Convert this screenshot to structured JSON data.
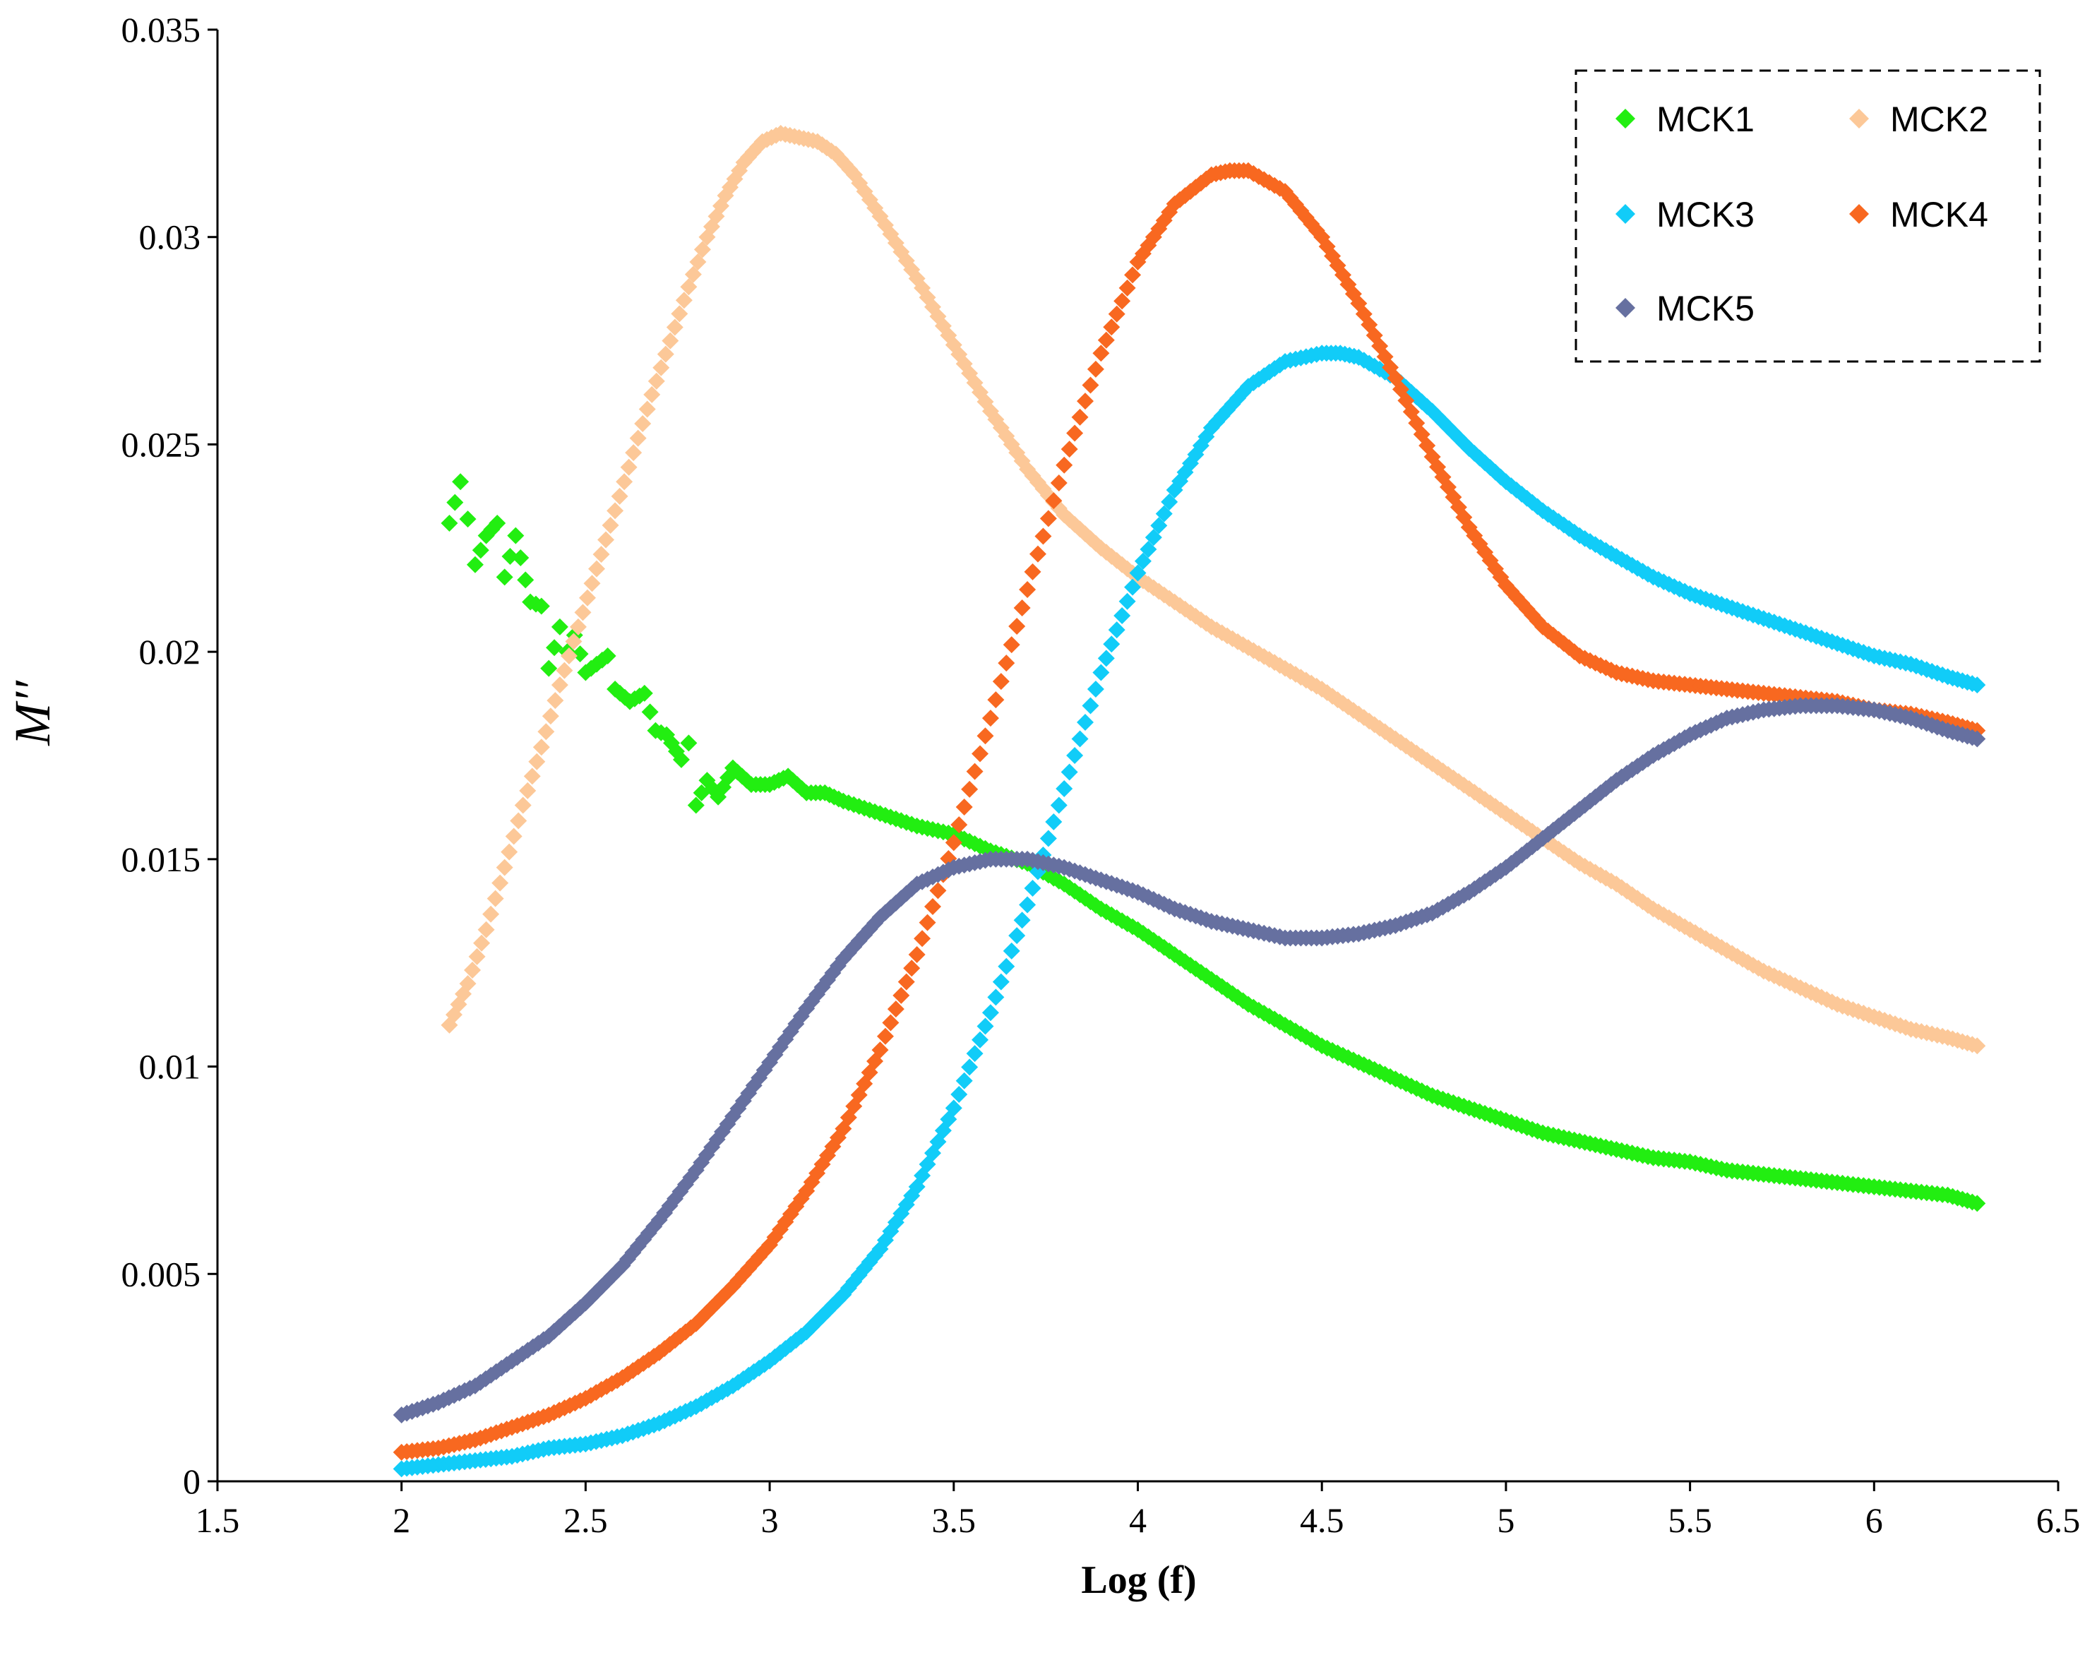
{
  "chart_data": {
    "type": "scatter",
    "title": "",
    "xlabel": "Log (f)",
    "ylabel": "M′′",
    "xlim": [
      1.5,
      6.5
    ],
    "ylim": [
      0,
      0.035
    ],
    "xticks": [
      1.5,
      2,
      2.5,
      3,
      3.5,
      4,
      4.5,
      5,
      5.5,
      6,
      6.5
    ],
    "xtick_labels": [
      "1.5",
      "2",
      "2.5",
      "3",
      "3.5",
      "4",
      "4.5",
      "5",
      "5.5",
      "6",
      "6.5"
    ],
    "yticks": [
      0,
      0.005,
      0.01,
      0.015,
      0.02,
      0.025,
      0.03,
      0.035
    ],
    "ytick_labels": [
      "0",
      "0.005",
      "0.01",
      "0.015",
      "0.02",
      "0.025",
      "0.03",
      "0.035"
    ],
    "grid": false,
    "legend_position": "top-right",
    "marker": "diamond",
    "series": [
      {
        "name": "MCK1",
        "color": "#22ee11",
        "points": [
          [
            2.13,
            0.0231
          ],
          [
            2.16,
            0.0241
          ],
          [
            2.18,
            0.0232
          ],
          [
            2.2,
            0.0221
          ],
          [
            2.23,
            0.0228
          ],
          [
            2.26,
            0.0231
          ],
          [
            2.28,
            0.0218
          ],
          [
            2.31,
            0.0228
          ],
          [
            2.35,
            0.0212
          ],
          [
            2.38,
            0.0211
          ],
          [
            2.4,
            0.0196
          ],
          [
            2.43,
            0.0206
          ],
          [
            2.45,
            0.02
          ],
          [
            2.47,
            0.0204
          ],
          [
            2.5,
            0.0195
          ],
          [
            2.53,
            0.0197
          ],
          [
            2.56,
            0.0199
          ],
          [
            2.58,
            0.0191
          ],
          [
            2.62,
            0.0188
          ],
          [
            2.66,
            0.019
          ],
          [
            2.69,
            0.0181
          ],
          [
            2.72,
            0.018
          ],
          [
            2.76,
            0.0174
          ],
          [
            2.78,
            0.0178
          ],
          [
            2.8,
            0.0163
          ],
          [
            2.83,
            0.0169
          ],
          [
            2.86,
            0.0165
          ],
          [
            2.9,
            0.0172
          ],
          [
            2.95,
            0.0168
          ],
          [
            3.0,
            0.0168
          ],
          [
            3.05,
            0.017
          ],
          [
            3.1,
            0.0166
          ],
          [
            3.15,
            0.0166
          ],
          [
            3.2,
            0.0164
          ],
          [
            3.3,
            0.0161
          ],
          [
            3.4,
            0.0158
          ],
          [
            3.5,
            0.0156
          ],
          [
            3.6,
            0.0152
          ],
          [
            3.7,
            0.0149
          ],
          [
            3.8,
            0.0144
          ],
          [
            3.9,
            0.0138
          ],
          [
            4.0,
            0.0133
          ],
          [
            4.1,
            0.0127
          ],
          [
            4.2,
            0.0121
          ],
          [
            4.3,
            0.0115
          ],
          [
            4.4,
            0.011
          ],
          [
            4.5,
            0.0105
          ],
          [
            4.6,
            0.0101
          ],
          [
            4.7,
            0.0097
          ],
          [
            4.8,
            0.0093
          ],
          [
            4.9,
            0.009
          ],
          [
            5.0,
            0.0087
          ],
          [
            5.1,
            0.0084
          ],
          [
            5.2,
            0.0082
          ],
          [
            5.3,
            0.008
          ],
          [
            5.4,
            0.0078
          ],
          [
            5.5,
            0.0077
          ],
          [
            5.6,
            0.0075
          ],
          [
            5.7,
            0.0074
          ],
          [
            5.8,
            0.0073
          ],
          [
            5.9,
            0.0072
          ],
          [
            6.0,
            0.0071
          ],
          [
            6.1,
            0.007
          ],
          [
            6.2,
            0.0069
          ],
          [
            6.28,
            0.0067
          ]
        ]
      },
      {
        "name": "MCK2",
        "color": "#fcc898",
        "points": [
          [
            2.13,
            0.011
          ],
          [
            2.18,
            0.012
          ],
          [
            2.23,
            0.0133
          ],
          [
            2.28,
            0.0148
          ],
          [
            2.33,
            0.0163
          ],
          [
            2.38,
            0.0177
          ],
          [
            2.43,
            0.0192
          ],
          [
            2.48,
            0.0206
          ],
          [
            2.53,
            0.022
          ],
          [
            2.58,
            0.0234
          ],
          [
            2.63,
            0.0248
          ],
          [
            2.68,
            0.0262
          ],
          [
            2.73,
            0.0275
          ],
          [
            2.78,
            0.0288
          ],
          [
            2.83,
            0.03
          ],
          [
            2.88,
            0.031
          ],
          [
            2.93,
            0.0318
          ],
          [
            2.98,
            0.0323
          ],
          [
            3.03,
            0.0325
          ],
          [
            3.08,
            0.0324
          ],
          [
            3.13,
            0.0323
          ],
          [
            3.18,
            0.032
          ],
          [
            3.23,
            0.0315
          ],
          [
            3.3,
            0.0305
          ],
          [
            3.4,
            0.029
          ],
          [
            3.5,
            0.0274
          ],
          [
            3.6,
            0.0258
          ],
          [
            3.7,
            0.0244
          ],
          [
            3.8,
            0.0233
          ],
          [
            3.9,
            0.0225
          ],
          [
            4.0,
            0.0218
          ],
          [
            4.1,
            0.0212
          ],
          [
            4.2,
            0.0206
          ],
          [
            4.3,
            0.0201
          ],
          [
            4.4,
            0.0196
          ],
          [
            4.5,
            0.0191
          ],
          [
            4.6,
            0.0185
          ],
          [
            4.7,
            0.0179
          ],
          [
            4.8,
            0.0173
          ],
          [
            4.9,
            0.0167
          ],
          [
            5.0,
            0.0161
          ],
          [
            5.1,
            0.0155
          ],
          [
            5.2,
            0.0149
          ],
          [
            5.3,
            0.0144
          ],
          [
            5.4,
            0.0138
          ],
          [
            5.5,
            0.0133
          ],
          [
            5.6,
            0.0128
          ],
          [
            5.7,
            0.0123
          ],
          [
            5.8,
            0.0119
          ],
          [
            5.9,
            0.0115
          ],
          [
            6.0,
            0.0112
          ],
          [
            6.1,
            0.0109
          ],
          [
            6.2,
            0.0107
          ],
          [
            6.28,
            0.0105
          ]
        ]
      },
      {
        "name": "MCK3",
        "color": "#11ccf8",
        "points": [
          [
            2.0,
            0.0003
          ],
          [
            2.1,
            0.0004
          ],
          [
            2.2,
            0.0005
          ],
          [
            2.3,
            0.0006
          ],
          [
            2.4,
            0.0008
          ],
          [
            2.5,
            0.0009
          ],
          [
            2.6,
            0.0011
          ],
          [
            2.7,
            0.0014
          ],
          [
            2.8,
            0.0018
          ],
          [
            2.9,
            0.0023
          ],
          [
            3.0,
            0.0029
          ],
          [
            3.1,
            0.0036
          ],
          [
            3.2,
            0.0045
          ],
          [
            3.3,
            0.0056
          ],
          [
            3.4,
            0.0071
          ],
          [
            3.5,
            0.009
          ],
          [
            3.6,
            0.0113
          ],
          [
            3.7,
            0.0139
          ],
          [
            3.8,
            0.0167
          ],
          [
            3.9,
            0.0195
          ],
          [
            4.0,
            0.0219
          ],
          [
            4.1,
            0.0239
          ],
          [
            4.2,
            0.0254
          ],
          [
            4.3,
            0.0264
          ],
          [
            4.4,
            0.027
          ],
          [
            4.5,
            0.0272
          ],
          [
            4.55,
            0.0272
          ],
          [
            4.6,
            0.0271
          ],
          [
            4.7,
            0.0266
          ],
          [
            4.8,
            0.0258
          ],
          [
            4.9,
            0.0249
          ],
          [
            5.0,
            0.0241
          ],
          [
            5.1,
            0.0234
          ],
          [
            5.2,
            0.0228
          ],
          [
            5.3,
            0.0223
          ],
          [
            5.4,
            0.0218
          ],
          [
            5.5,
            0.0214
          ],
          [
            5.6,
            0.0211
          ],
          [
            5.7,
            0.0208
          ],
          [
            5.8,
            0.0205
          ],
          [
            5.9,
            0.0202
          ],
          [
            6.0,
            0.0199
          ],
          [
            6.1,
            0.0197
          ],
          [
            6.2,
            0.0194
          ],
          [
            6.28,
            0.0192
          ]
        ]
      },
      {
        "name": "MCK4",
        "color": "#f86820",
        "points": [
          [
            2.0,
            0.0007
          ],
          [
            2.1,
            0.0008
          ],
          [
            2.2,
            0.001
          ],
          [
            2.3,
            0.0013
          ],
          [
            2.4,
            0.0016
          ],
          [
            2.5,
            0.002
          ],
          [
            2.6,
            0.0025
          ],
          [
            2.7,
            0.0031
          ],
          [
            2.8,
            0.0038
          ],
          [
            2.9,
            0.0047
          ],
          [
            3.0,
            0.0057
          ],
          [
            3.1,
            0.007
          ],
          [
            3.2,
            0.0085
          ],
          [
            3.3,
            0.0104
          ],
          [
            3.4,
            0.0127
          ],
          [
            3.5,
            0.0154
          ],
          [
            3.6,
            0.0184
          ],
          [
            3.7,
            0.0215
          ],
          [
            3.8,
            0.0245
          ],
          [
            3.9,
            0.0272
          ],
          [
            4.0,
            0.0294
          ],
          [
            4.1,
            0.0308
          ],
          [
            4.2,
            0.0315
          ],
          [
            4.25,
            0.0316
          ],
          [
            4.3,
            0.0316
          ],
          [
            4.4,
            0.0311
          ],
          [
            4.5,
            0.03
          ],
          [
            4.6,
            0.0284
          ],
          [
            4.7,
            0.0266
          ],
          [
            4.8,
            0.0247
          ],
          [
            4.9,
            0.023
          ],
          [
            5.0,
            0.0216
          ],
          [
            5.1,
            0.0206
          ],
          [
            5.2,
            0.0199
          ],
          [
            5.3,
            0.0195
          ],
          [
            5.4,
            0.0193
          ],
          [
            5.5,
            0.0192
          ],
          [
            5.6,
            0.0191
          ],
          [
            5.7,
            0.019
          ],
          [
            5.8,
            0.0189
          ],
          [
            5.9,
            0.0188
          ],
          [
            6.0,
            0.0186
          ],
          [
            6.1,
            0.0185
          ],
          [
            6.2,
            0.0183
          ],
          [
            6.28,
            0.0181
          ]
        ]
      },
      {
        "name": "MCK5",
        "color": "#6670a0",
        "points": [
          [
            2.0,
            0.0016
          ],
          [
            2.1,
            0.0019
          ],
          [
            2.2,
            0.0023
          ],
          [
            2.3,
            0.0029
          ],
          [
            2.4,
            0.0035
          ],
          [
            2.5,
            0.0043
          ],
          [
            2.6,
            0.0052
          ],
          [
            2.7,
            0.0063
          ],
          [
            2.8,
            0.0075
          ],
          [
            2.9,
            0.0088
          ],
          [
            3.0,
            0.0101
          ],
          [
            3.1,
            0.0114
          ],
          [
            3.2,
            0.0126
          ],
          [
            3.3,
            0.0136
          ],
          [
            3.4,
            0.0144
          ],
          [
            3.5,
            0.0148
          ],
          [
            3.6,
            0.015
          ],
          [
            3.7,
            0.015
          ],
          [
            3.8,
            0.0148
          ],
          [
            3.9,
            0.0145
          ],
          [
            4.0,
            0.0142
          ],
          [
            4.1,
            0.0138
          ],
          [
            4.2,
            0.0135
          ],
          [
            4.3,
            0.0133
          ],
          [
            4.4,
            0.0131
          ],
          [
            4.5,
            0.0131
          ],
          [
            4.6,
            0.0132
          ],
          [
            4.7,
            0.0134
          ],
          [
            4.8,
            0.0137
          ],
          [
            4.9,
            0.0142
          ],
          [
            5.0,
            0.0148
          ],
          [
            5.1,
            0.0155
          ],
          [
            5.2,
            0.0162
          ],
          [
            5.3,
            0.0169
          ],
          [
            5.4,
            0.0175
          ],
          [
            5.5,
            0.018
          ],
          [
            5.6,
            0.0184
          ],
          [
            5.7,
            0.0186
          ],
          [
            5.8,
            0.0187
          ],
          [
            5.9,
            0.0187
          ],
          [
            6.0,
            0.0186
          ],
          [
            6.1,
            0.0184
          ],
          [
            6.2,
            0.0181
          ],
          [
            6.28,
            0.0179
          ]
        ]
      }
    ]
  }
}
